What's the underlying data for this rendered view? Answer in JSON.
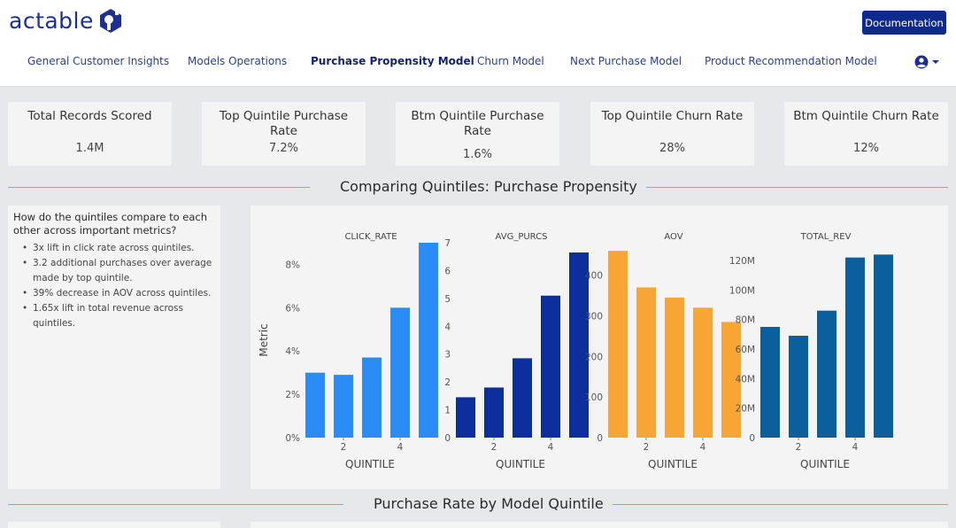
{
  "header": {
    "logo_text": "actable",
    "doc_button": "Documentation",
    "nav": [
      {
        "label": "General Customer Insights",
        "active": false
      },
      {
        "label": "Models Operations",
        "active": false
      },
      {
        "label": "Purchase Propensity Model",
        "active": true
      },
      {
        "label": "Churn Model",
        "active": false
      },
      {
        "label": "Next Purchase Model",
        "active": false
      },
      {
        "label": "Product Recommendation Model",
        "active": false
      }
    ],
    "user_icon": "user-circle-icon"
  },
  "kpis": [
    {
      "label": "Total Records Scored",
      "value": "1.4M"
    },
    {
      "label": "Top Quintile Purchase Rate",
      "value": "7.2%"
    },
    {
      "label": "Btm Quintile Purchase Rate",
      "value": "1.6%"
    },
    {
      "label": "Top Quintile Churn Rate",
      "value": "28%"
    },
    {
      "label": "Btm Quintile Churn Rate",
      "value": "12%"
    }
  ],
  "section1_title": "Comparing Quintiles: Purchase Propensity",
  "section2_title": "Purchase Rate by Model Quintile",
  "insights": {
    "question": "How do the quintiles compare to each other across important metrics?",
    "bullets": [
      "3x lift in click rate across quintiles.",
      "3.2 additional purchases over average made by top quintile.",
      "39% decrease in AOV across quintiles.",
      "1.65x lift in total revenue across quintiles."
    ]
  },
  "colors": {
    "accent": "#0f2a8c",
    "click_rate": "#2b8cf7",
    "avg_purcs": "#0d2f9c",
    "aov": "#f7a535",
    "total_rev": "#0b5f9e"
  },
  "chart_data": [
    {
      "type": "bar",
      "title": "CLICK_RATE",
      "xlabel": "QUINTILE",
      "ylabel": "Metric",
      "categories": [
        1,
        2,
        3,
        4,
        5
      ],
      "x_tick_labels": [
        "2",
        "4"
      ],
      "values": [
        3.0,
        2.9,
        3.7,
        6.0,
        9.0
      ],
      "ylim": [
        0,
        9
      ],
      "y_ticks": [
        0,
        2,
        4,
        6,
        8
      ],
      "y_tick_labels": [
        "0%",
        "2%",
        "4%",
        "6%",
        "8%"
      ]
    },
    {
      "type": "bar",
      "title": "AVG_PURCS",
      "xlabel": "QUINTILE",
      "categories": [
        1,
        2,
        3,
        4,
        5
      ],
      "x_tick_labels": [
        "2",
        "4"
      ],
      "values": [
        1.45,
        1.8,
        2.85,
        5.1,
        6.65
      ],
      "ylim": [
        0,
        7
      ],
      "y_ticks": [
        0,
        1,
        2,
        3,
        4,
        5,
        6,
        7
      ],
      "y_tick_labels": [
        "0",
        "1",
        "2",
        "3",
        "4",
        "5",
        "6",
        "7"
      ]
    },
    {
      "type": "bar",
      "title": "AOV",
      "xlabel": "QUINTILE",
      "categories": [
        1,
        2,
        3,
        4,
        5
      ],
      "x_tick_labels": [
        "2",
        "4"
      ],
      "values": [
        460,
        370,
        345,
        320,
        285
      ],
      "ylim": [
        0,
        480
      ],
      "y_ticks": [
        0,
        100,
        200,
        300,
        400
      ],
      "y_tick_labels": [
        "0",
        "100",
        "200",
        "300",
        "400"
      ]
    },
    {
      "type": "bar",
      "title": "TOTAL_REV",
      "xlabel": "QUINTILE",
      "categories": [
        1,
        2,
        3,
        4,
        5
      ],
      "x_tick_labels": [
        "2",
        "4"
      ],
      "values": [
        75,
        69,
        86,
        122,
        124
      ],
      "ylim": [
        0,
        132
      ],
      "y_ticks": [
        0,
        20,
        40,
        60,
        80,
        100,
        120
      ],
      "y_tick_labels": [
        "0",
        "20M",
        "40M",
        "60M",
        "80M",
        "100M",
        "120M"
      ]
    }
  ]
}
